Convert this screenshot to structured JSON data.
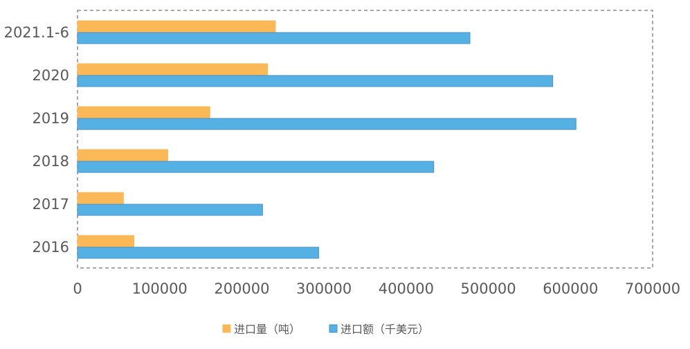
{
  "chart_data": {
    "type": "bar",
    "orientation": "horizontal",
    "categories": [
      "2016",
      "2017",
      "2018",
      "2019",
      "2020",
      "2021.1-6"
    ],
    "series": [
      {
        "name": "进口量（吨）",
        "color": "#FBB857",
        "values": [
          68700,
          55900,
          109900,
          161200,
          231300,
          240800
        ]
      },
      {
        "name": "进口额（千美元）",
        "color": "#55B0E4",
        "values": [
          293500,
          225200,
          433600,
          606700,
          578400,
          477600
        ]
      }
    ],
    "xlim": [
      0,
      700000
    ],
    "xticks": [
      "0",
      "100000",
      "200000",
      "300000",
      "400000",
      "500000",
      "600000",
      "700000"
    ],
    "grid": false,
    "legend": "bottom",
    "border_color": "#8C8C8C"
  }
}
